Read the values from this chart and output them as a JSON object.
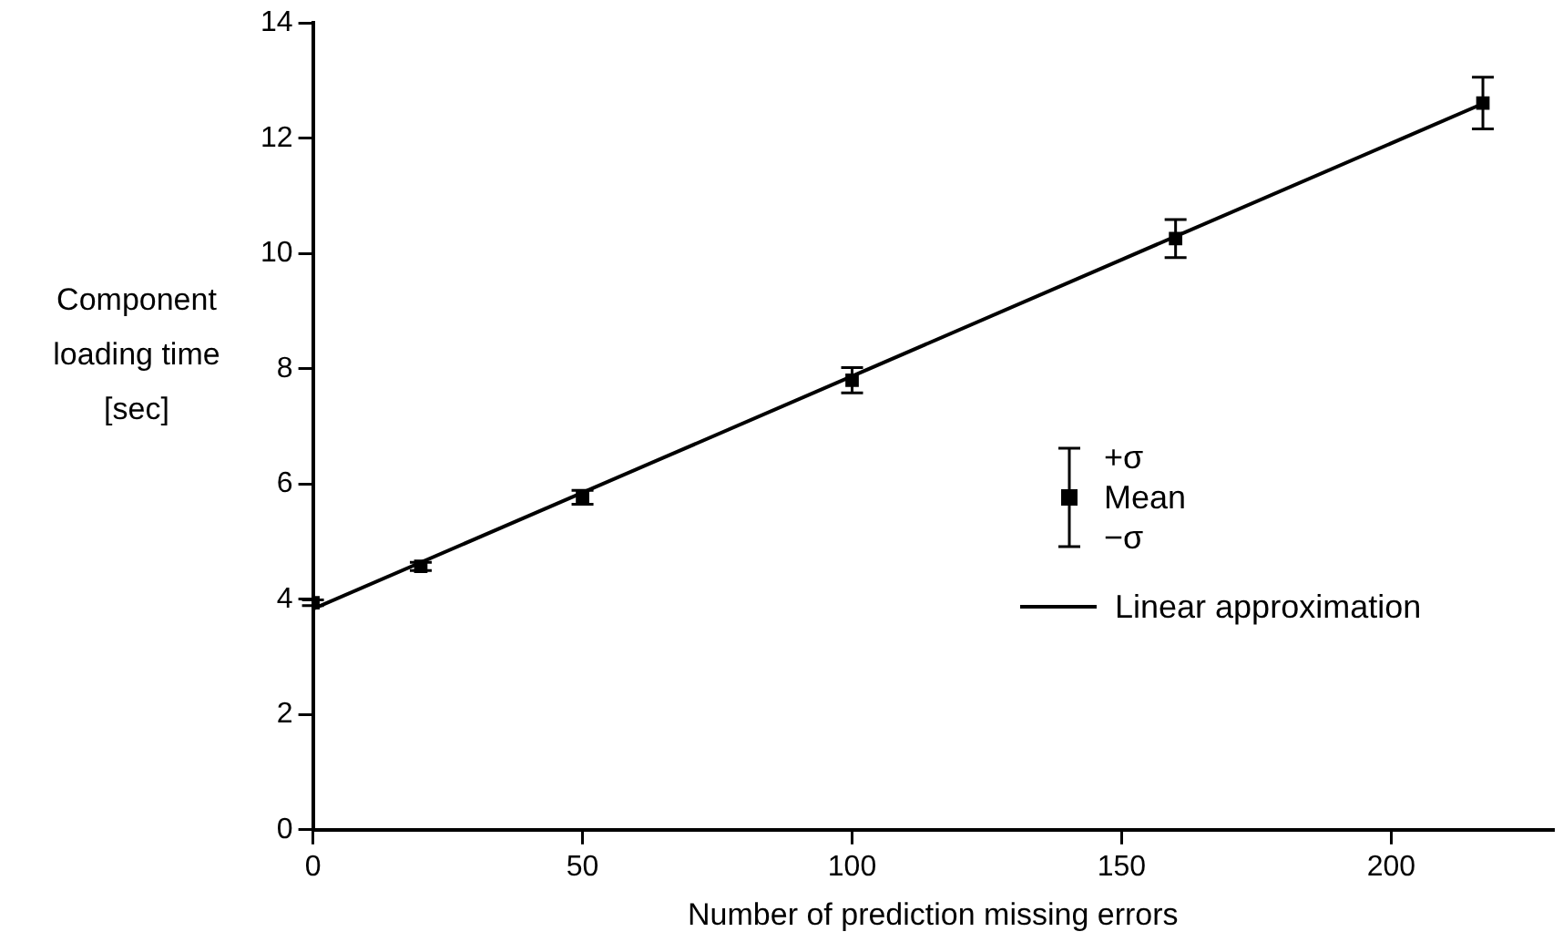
{
  "chart_data": {
    "type": "scatter",
    "xlabel": "Number of prediction missing errors",
    "ylabel": "Component loading time [sec]",
    "x": [
      0,
      20,
      50,
      100,
      160,
      217
    ],
    "series": [
      {
        "name": "Mean",
        "type": "scatter",
        "color": "#000000",
        "marker": "square",
        "values": [
          3.94,
          4.57,
          5.77,
          7.8,
          10.26,
          12.61
        ],
        "errors": [
          0.05,
          0.07,
          0.12,
          0.22,
          0.33,
          0.45
        ]
      },
      {
        "name": "Linear approximation",
        "type": "line",
        "color": "#000000",
        "x": [
          0,
          217
        ],
        "values": [
          3.83,
          12.6
        ]
      }
    ],
    "annotations": [
      "+σ",
      "−σ"
    ],
    "xlim": [
      0,
      230
    ],
    "xticks": [
      0,
      50,
      100,
      150,
      200
    ],
    "ylim": [
      0,
      14
    ],
    "yticks": [
      0,
      2,
      4,
      6,
      8,
      10,
      12,
      14
    ],
    "grid": false,
    "legend": "right"
  }
}
